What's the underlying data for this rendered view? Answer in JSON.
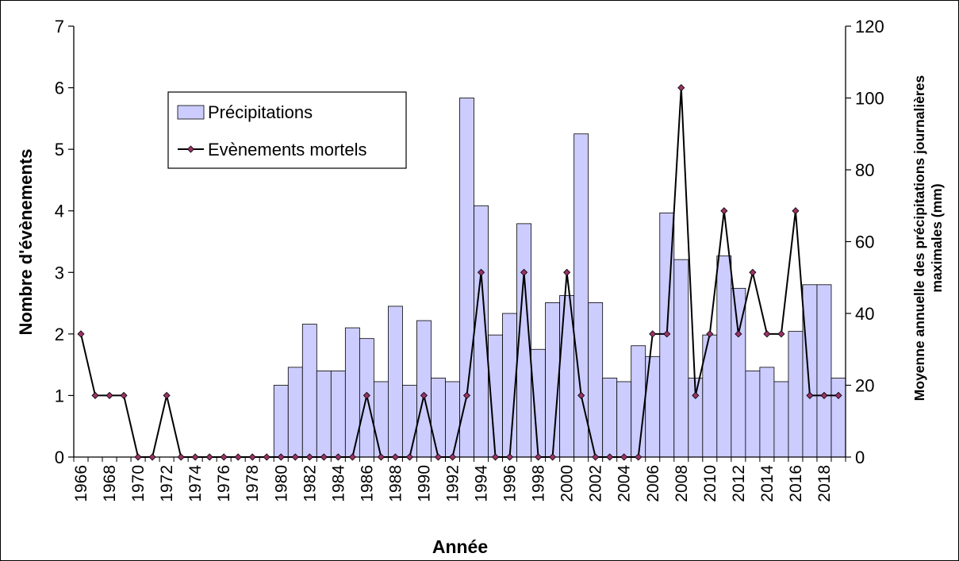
{
  "chart_data": {
    "type": "bar+line",
    "xlabel": "Année",
    "ylabel_left": "Nombre d'évènements",
    "ylabel_right": "Moyenne annuelle des précipitations journalières maximales (mm)",
    "ylabel_right_lines": [
      "Moyenne annuelle des précipitations journalières",
      "maximales (mm)"
    ],
    "ylim_left": [
      0,
      7
    ],
    "ylim_right": [
      0,
      120
    ],
    "yticks_left": [
      "0",
      "1",
      "2",
      "3",
      "4",
      "5",
      "6",
      "7"
    ],
    "yticks_right": [
      "0",
      "20",
      "40",
      "60",
      "80",
      "100",
      "120"
    ],
    "x_tick_labels": [
      "1966",
      "1968",
      "1970",
      "1972",
      "1974",
      "1976",
      "1978",
      "1980",
      "1982",
      "1984",
      "1986",
      "1988",
      "1990",
      "1992",
      "1994",
      "1996",
      "1998",
      "2000",
      "2002",
      "2004",
      "2006",
      "2008",
      "2010",
      "2012",
      "2014",
      "2016",
      "2018"
    ],
    "grid": false,
    "legend_placement": "top-left",
    "x": [
      1966,
      1967,
      1968,
      1969,
      1970,
      1971,
      1972,
      1973,
      1974,
      1975,
      1976,
      1977,
      1978,
      1979,
      1980,
      1981,
      1982,
      1983,
      1984,
      1985,
      1986,
      1987,
      1988,
      1989,
      1990,
      1991,
      1992,
      1993,
      1994,
      1995,
      1996,
      1997,
      1998,
      1999,
      2000,
      2001,
      2002,
      2003,
      2004,
      2005,
      2006,
      2007,
      2008,
      2009,
      2010,
      2011,
      2012,
      2013,
      2014,
      2015,
      2016,
      2017,
      2018,
      2019
    ],
    "series": [
      {
        "name": "Précipitations",
        "type": "bar",
        "axis": "right",
        "color": "#ccccff",
        "values": [
          null,
          null,
          null,
          null,
          null,
          null,
          null,
          null,
          null,
          null,
          null,
          null,
          null,
          null,
          20,
          25,
          37,
          24,
          24,
          36,
          33,
          21,
          42,
          20,
          38,
          22,
          21,
          100,
          70,
          34,
          40,
          65,
          30,
          43,
          45,
          90,
          43,
          22,
          21,
          31,
          28,
          68,
          55,
          22,
          34,
          56,
          47,
          24,
          25,
          21,
          35,
          48,
          48,
          22
        ]
      },
      {
        "name": "Evènements mortels",
        "type": "line",
        "axis": "left",
        "color": "#000000",
        "marker_color": "#993366",
        "values": [
          2,
          1,
          1,
          1,
          0,
          0,
          1,
          0,
          0,
          0,
          0,
          0,
          0,
          0,
          0,
          0,
          0,
          0,
          0,
          0,
          1,
          0,
          0,
          0,
          1,
          0,
          0,
          1,
          3,
          0,
          0,
          3,
          0,
          0,
          3,
          1,
          0,
          0,
          0,
          0,
          2,
          2,
          6,
          1,
          2,
          4,
          2,
          3,
          2,
          2,
          4,
          1,
          1,
          1
        ]
      }
    ]
  }
}
